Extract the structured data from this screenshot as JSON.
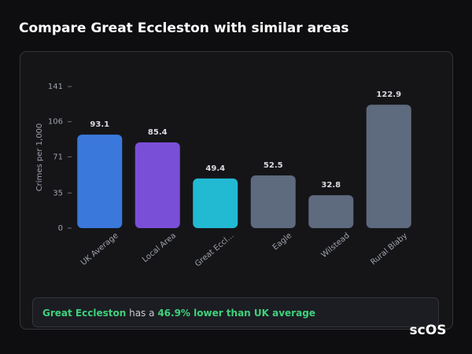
{
  "chart_data": {
    "type": "bar",
    "title": "Compare Great Eccleston with similar areas",
    "y_label": "Crimes per 1,000",
    "categories": [
      "UK Average",
      "Local Area",
      "Great Eccl...",
      "Eagle",
      "Wilstead",
      "Rural Blaby"
    ],
    "values": [
      93.1,
      85.4,
      49.4,
      52.5,
      32.8,
      122.9
    ],
    "colors": [
      "#3a78dc",
      "#7a4fd8",
      "#22b9d2",
      "#5e6a7d",
      "#5e6a7d",
      "#5e6a7d"
    ],
    "ylim": [
      0,
      141
    ],
    "yticks": [
      0,
      35,
      71,
      106,
      141
    ],
    "grid": false
  },
  "insight": {
    "area": "Great Eccleston",
    "text": "has a",
    "highlight": "46.9% lower than UK average"
  },
  "logo": "scOS"
}
